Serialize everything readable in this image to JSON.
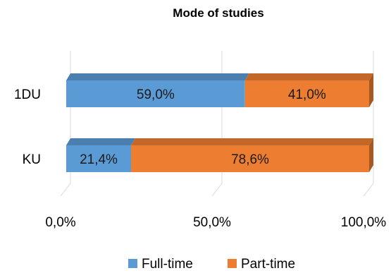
{
  "chart_data": {
    "type": "bar",
    "orientation": "horizontal",
    "stacked": true,
    "percent_stacked": true,
    "three_d": true,
    "title": "Mode of studies",
    "categories": [
      "1DU",
      "KU"
    ],
    "series": [
      {
        "name": "Full-time",
        "values": [
          59.0,
          21.4
        ],
        "labels": [
          "59,0%",
          "21,4%"
        ],
        "color": "#5b9bd5"
      },
      {
        "name": "Part-time",
        "values": [
          41.0,
          78.6
        ],
        "labels": [
          "41,0%",
          "78,6%"
        ],
        "color": "#ed7d31"
      }
    ],
    "xlim": [
      0,
      100
    ],
    "x_ticks": [
      0,
      50,
      100
    ],
    "x_tick_labels": [
      "0,0%",
      "50,0%",
      "100,0%"
    ],
    "grid": true,
    "legend_position": "bottom"
  }
}
